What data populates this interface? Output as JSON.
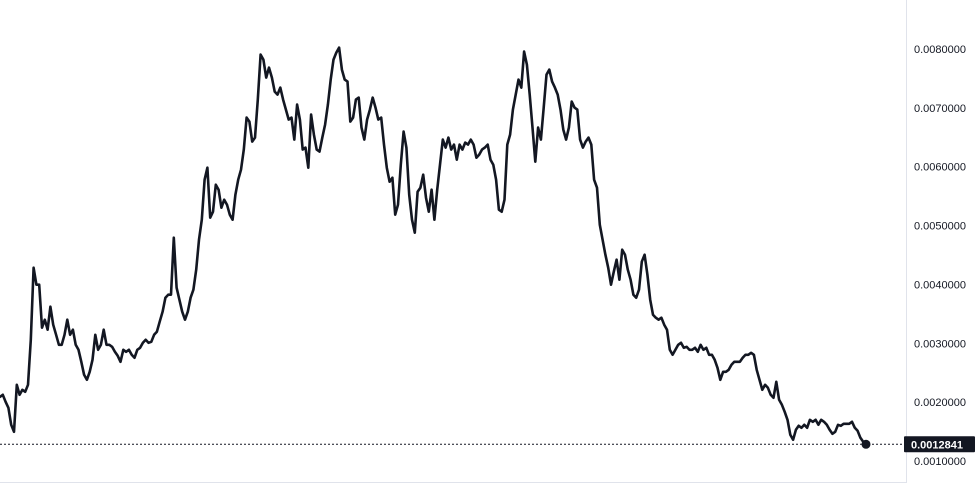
{
  "chart_data": {
    "type": "line",
    "title": "",
    "xlabel": "",
    "ylabel": "",
    "ylim": [
      0.00085,
      0.00885
    ],
    "grid": false,
    "line_color": "#131722",
    "y_ticks": [
      "0.0080000",
      "0.0070000",
      "0.0060000",
      "0.0050000",
      "0.0040000",
      "0.0030000",
      "0.0020000",
      "0.0010000"
    ],
    "y_tick_values": [
      0.008,
      0.007,
      0.006,
      0.005,
      0.004,
      0.003,
      0.002,
      0.001
    ],
    "last_value": 0.0012841,
    "last_value_label": "0.0012841",
    "values": [
      0.002091,
      0.002125,
      0.002006,
      0.001904,
      0.001615,
      0.001496,
      0.002295,
      0.002125,
      0.00221,
      0.002176,
      0.002295,
      0.00306,
      0.004284,
      0.003995,
      0.003995,
      0.003264,
      0.0034,
      0.00323,
      0.003621,
      0.003315,
      0.003145,
      0.002975,
      0.002975,
      0.003145,
      0.0034,
      0.003145,
      0.00323,
      0.002975,
      0.00289,
      0.002686,
      0.002465,
      0.00238,
      0.002516,
      0.00272,
      0.003145,
      0.00289,
      0.002975,
      0.00323,
      0.002975,
      0.002975,
      0.002941,
      0.002856,
      0.002788,
      0.002686,
      0.00289,
      0.002856,
      0.00289,
      0.002805,
      0.002754,
      0.00289,
      0.002924,
      0.003009,
      0.00306,
      0.003009,
      0.003026,
      0.003145,
      0.003196,
      0.003366,
      0.003536,
      0.003774,
      0.003825,
      0.003825,
      0.004794,
      0.003944,
      0.00374,
      0.003536,
      0.0034,
      0.003536,
      0.003774,
      0.00391,
      0.00425,
      0.00476,
      0.0051,
      0.00578,
      0.005984,
      0.005134,
      0.005236,
      0.005695,
      0.00561,
      0.005304,
      0.00544,
      0.005355,
      0.005185,
      0.0051,
      0.005525,
      0.00578,
      0.00595,
      0.00629,
      0.006834,
      0.006766,
      0.006426,
      0.006494,
      0.00714,
      0.007905,
      0.00782,
      0.007514,
      0.007684,
      0.007514,
      0.007276,
      0.007225,
      0.007344,
      0.00714,
      0.00697,
      0.0068,
      0.006834,
      0.00646,
      0.007055,
      0.0068,
      0.00629,
      0.006324,
      0.005984,
      0.006885,
      0.006545,
      0.00629,
      0.006256,
      0.006494,
      0.006715,
      0.007055,
      0.00748,
      0.00782,
      0.007939,
      0.008024,
      0.00765,
      0.00748,
      0.007446,
      0.006766,
      0.006834,
      0.00714,
      0.007174,
      0.006664,
      0.00646,
      0.0068,
      0.00697,
      0.007174,
      0.007004,
      0.0068,
      0.006834,
      0.006375,
      0.005984,
      0.005746,
      0.005814,
      0.005185,
      0.005355,
      0.006035,
      0.006596,
      0.006324,
      0.005525,
      0.0051,
      0.004879,
      0.005576,
      0.005644,
      0.005865,
      0.005474,
      0.005236,
      0.00561,
      0.0051,
      0.00561,
      0.006035,
      0.00646,
      0.006324,
      0.006494,
      0.00629,
      0.006375,
      0.00612,
      0.006375,
      0.00629,
      0.006409,
      0.006375,
      0.00646,
      0.006375,
      0.006154,
      0.006205,
      0.00629,
      0.006324,
      0.006375,
      0.00612,
      0.006035,
      0.00578,
      0.00527,
      0.005236,
      0.00544,
      0.006375,
      0.006545,
      0.00697,
      0.007225,
      0.00748,
      0.007344,
      0.007956,
      0.007735,
      0.007225,
      0.006664,
      0.006086,
      0.006664,
      0.00646,
      0.007004,
      0.007565,
      0.00765,
      0.007446,
      0.007344,
      0.007225,
      0.00697,
      0.00663,
      0.00646,
      0.006664,
      0.007106,
      0.007004,
      0.00697,
      0.00646,
      0.006324,
      0.006426,
      0.006494,
      0.006375,
      0.00578,
      0.005644,
      0.005015,
      0.00476,
      0.004505,
      0.004284,
      0.003995,
      0.004216,
      0.00442,
      0.00408,
      0.00459,
      0.004505,
      0.00425,
      0.00408,
      0.003825,
      0.003774,
      0.00391,
      0.004386,
      0.004505,
      0.004165,
      0.00374,
      0.003485,
      0.003434,
      0.0034,
      0.003434,
      0.003315,
      0.00323,
      0.00289,
      0.002805,
      0.00289,
      0.002975,
      0.003009,
      0.002924,
      0.002941,
      0.00289,
      0.00289,
      0.002924,
      0.002856,
      0.002975,
      0.00289,
      0.002924,
      0.002805,
      0.002805,
      0.00272,
      0.002584,
      0.00238,
      0.002516,
      0.002516,
      0.00255,
      0.002635,
      0.002686,
      0.002686,
      0.002686,
      0.002754,
      0.002805,
      0.002805,
      0.002839,
      0.002805,
      0.00255,
      0.00238,
      0.00221,
      0.002295,
      0.002244,
      0.002125,
      0.002074,
      0.002346,
      0.00204,
      0.001955,
      0.001836,
      0.0017,
      0.001445,
      0.00136,
      0.00153,
      0.001598,
      0.001564,
      0.001615,
      0.001564,
      0.0017,
      0.001666,
      0.0017,
      0.001615,
      0.0017,
      0.001666,
      0.001615,
      0.00153,
      0.001462,
      0.001496,
      0.001615,
      0.001598,
      0.001632,
      0.001632,
      0.001632,
      0.001666,
      0.001564,
      0.001513,
      0.001394,
      0.001326,
      0.0012841
    ]
  }
}
